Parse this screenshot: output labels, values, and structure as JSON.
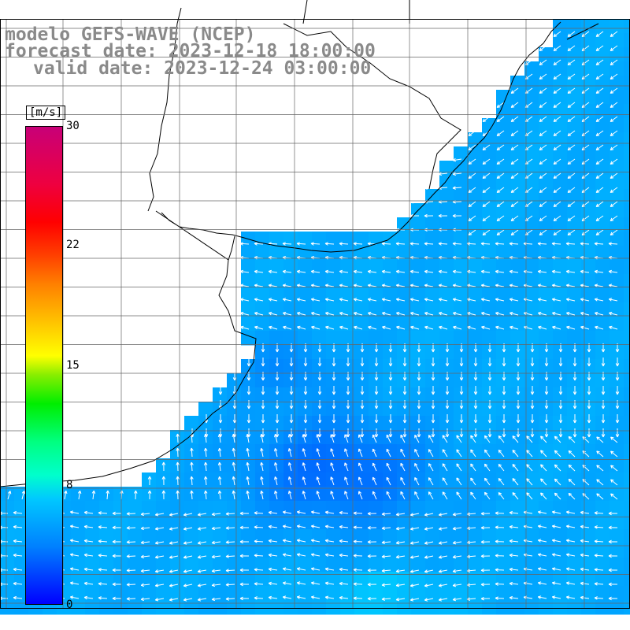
{
  "title": {
    "line1": "modelo GEFS-WAVE (NCEP)",
    "line2": "forecast date: 2023-12-18 18:00:00",
    "line3": "valid date: 2023-12-24 03:00:00"
  },
  "colorbar": {
    "unit": "[m/s]",
    "ticks": [
      "30",
      "22",
      "15",
      "8",
      "0"
    ],
    "tick_values": [
      30,
      22,
      15,
      8,
      0
    ],
    "min": 0,
    "max": 30
  },
  "map": {
    "variable": "wind speed and direction",
    "land_color": "#ffffff",
    "grid": true,
    "arrow_color": "#ffffff"
  }
}
